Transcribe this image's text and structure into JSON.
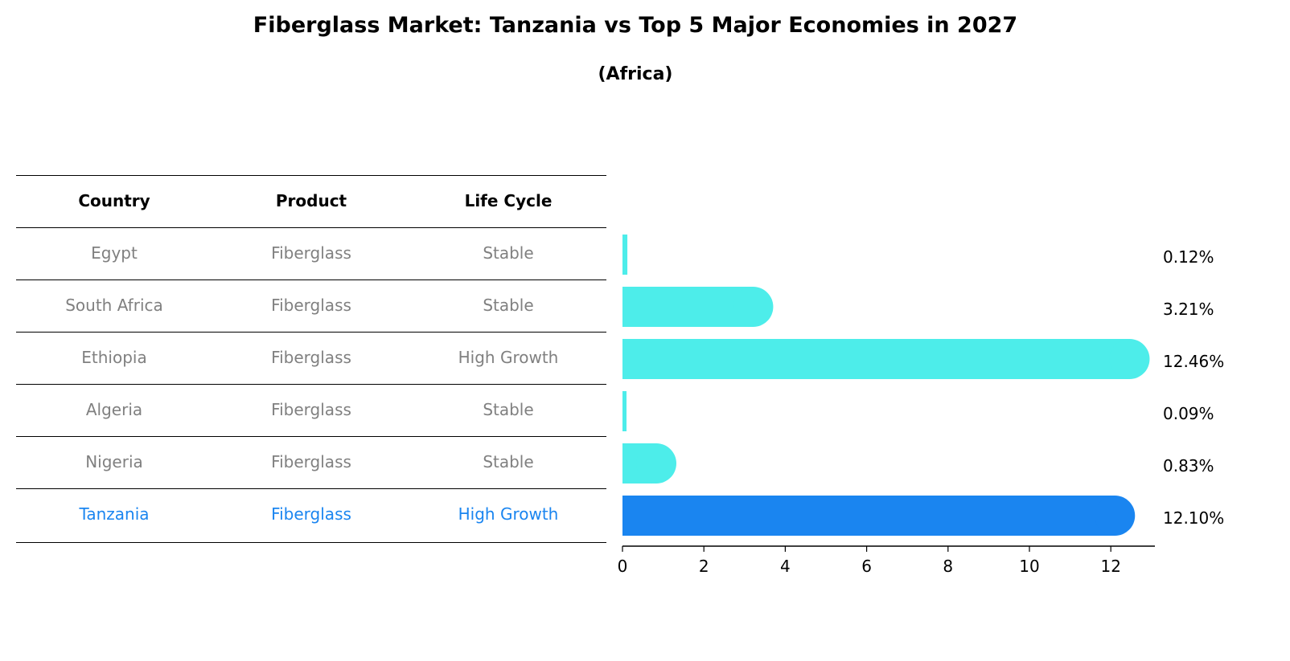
{
  "title": "Fiberglass Market: Tanzania vs Top 5 Major Economies in 2027",
  "subtitle": "(Africa)",
  "table": {
    "headers": [
      "Country",
      "Product",
      "Life Cycle"
    ],
    "rows": [
      [
        "Egypt",
        "Fiberglass",
        "Stable"
      ],
      [
        "South Africa",
        "Fiberglass",
        "Stable"
      ],
      [
        "Ethiopia",
        "Fiberglass",
        "High Growth"
      ],
      [
        "Algeria",
        "Fiberglass",
        "Stable"
      ],
      [
        "Nigeria",
        "Fiberglass",
        "Stable"
      ],
      [
        "Tanzania",
        "Fiberglass",
        "High Growth"
      ]
    ]
  },
  "colors": {
    "bar": "#4DEDEA",
    "highlight": "#1A85F0",
    "muted": "#808080"
  },
  "chart_data": {
    "type": "bar",
    "orientation": "horizontal",
    "categories": [
      "Egypt",
      "South Africa",
      "Ethiopia",
      "Algeria",
      "Nigeria",
      "Tanzania"
    ],
    "values": [
      0.12,
      3.21,
      12.46,
      0.09,
      0.83,
      12.1
    ],
    "labels": [
      "0.12%",
      "3.21%",
      "12.46%",
      "0.09%",
      "0.83%",
      "12.10%"
    ],
    "highlight": "Tanzania",
    "xticks": [
      0,
      2,
      4,
      6,
      8,
      10,
      12
    ],
    "xlim": [
      0,
      13.1
    ]
  }
}
